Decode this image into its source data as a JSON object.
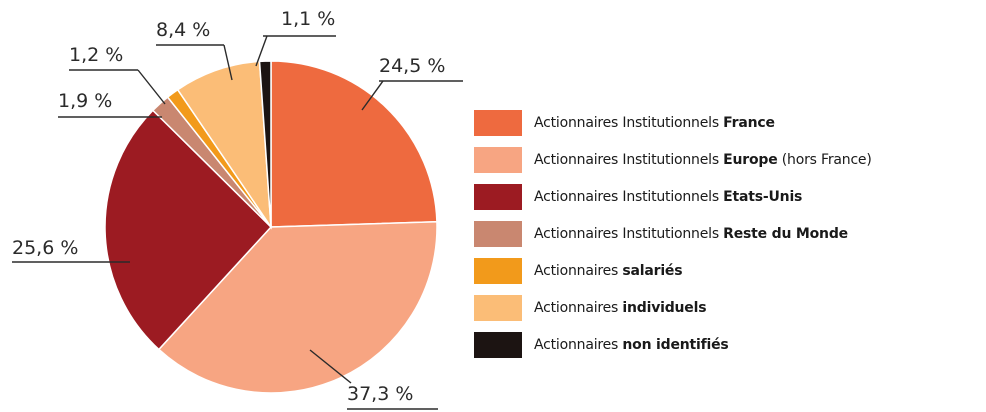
{
  "chart_data": {
    "type": "pie",
    "start_position": "top",
    "direction": "clockwise",
    "slices": [
      {
        "value": 24.5,
        "label": "24,5 %",
        "legend_prefix": "Actionnaires Institutionnels ",
        "legend_bold": "France",
        "legend_suffix": "",
        "color": "#ee6a3f"
      },
      {
        "value": 37.3,
        "label": "37,3 %",
        "legend_prefix": "Actionnaires Institutionnels ",
        "legend_bold": "Europe",
        "legend_suffix": " (hors France)",
        "color": "#f7a582"
      },
      {
        "value": 25.6,
        "label": "25,6 %",
        "legend_prefix": "Actionnaires Institutionnels ",
        "legend_bold": "Etats-Unis",
        "legend_suffix": "",
        "color": "#9c1b22"
      },
      {
        "value": 1.9,
        "label": "1,9 %",
        "legend_prefix": "Actionnaires Institutionnels ",
        "legend_bold": "Reste du Monde",
        "legend_suffix": "",
        "color": "#c98770"
      },
      {
        "value": 1.2,
        "label": "1,2 %",
        "legend_prefix": "Actionnaires ",
        "legend_bold": "salariés",
        "legend_suffix": "",
        "color": "#f29a1b"
      },
      {
        "value": 8.4,
        "label": "8,4 %",
        "legend_prefix": "Actionnaires ",
        "legend_bold": "individuels",
        "legend_suffix": "",
        "color": "#fbbd77"
      },
      {
        "value": 1.1,
        "label": "1,1 %",
        "legend_prefix": "Actionnaires ",
        "legend_bold": "non identifiés",
        "legend_suffix": "",
        "color": "#1c1412"
      }
    ]
  }
}
